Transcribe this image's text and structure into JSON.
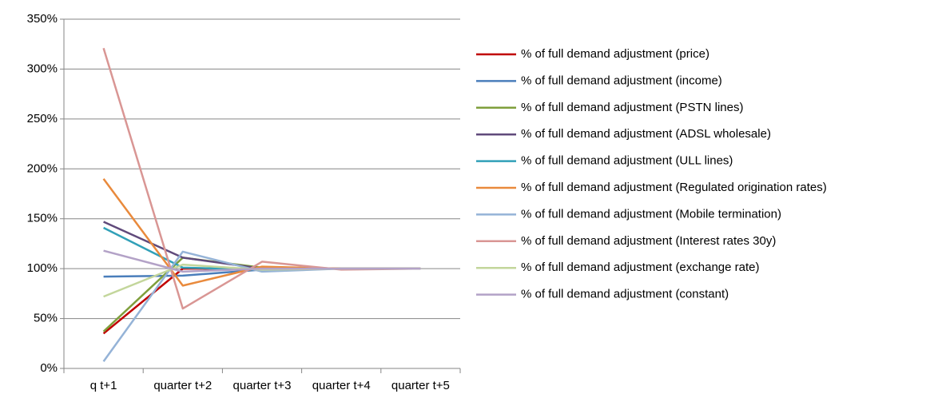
{
  "chart_data": {
    "type": "line",
    "categories": [
      "q t+1",
      "quarter t+2",
      "quarter t+3",
      "quarter t+4",
      "quarter t+5"
    ],
    "series": [
      {
        "name": "% of full demand adjustment (price)",
        "color": "#c00000",
        "values": [
          35,
          100,
          100,
          100,
          100
        ]
      },
      {
        "name": "% of full demand adjustment (income)",
        "color": "#4a7ebb",
        "values": [
          92,
          93,
          99,
          100,
          100
        ]
      },
      {
        "name": "% of full demand adjustment (PSTN lines)",
        "color": "#7f9f3c",
        "values": [
          37,
          111,
          101,
          100,
          100
        ]
      },
      {
        "name": "% of full demand adjustment (ADSL wholesale)",
        "color": "#604a7b",
        "values": [
          147,
          111,
          100,
          100,
          100
        ]
      },
      {
        "name": "% of full demand adjustment (ULL lines)",
        "color": "#31a0b8",
        "values": [
          141,
          101,
          99,
          100,
          100
        ]
      },
      {
        "name": "% of full demand adjustment (Regulated origination rates)",
        "color": "#e98a3c",
        "values": [
          190,
          83,
          102,
          100,
          100
        ]
      },
      {
        "name": "% of full demand adjustment (Mobile termination)",
        "color": "#95b3d7",
        "values": [
          7,
          117,
          97,
          100,
          100
        ]
      },
      {
        "name": "% of full demand adjustment (Interest rates 30y)",
        "color": "#d99694",
        "values": [
          321,
          60,
          107,
          99,
          100
        ]
      },
      {
        "name": "% of full demand adjustment (exchange rate)",
        "color": "#c3d69b",
        "values": [
          72,
          104,
          99,
          100,
          100
        ]
      },
      {
        "name": "% of full demand adjustment (constant)",
        "color": "#b3a2c7",
        "values": [
          118,
          97,
          100,
          100,
          100
        ]
      }
    ],
    "ylim": [
      0,
      350
    ],
    "yticks": [
      {
        "value": 0,
        "label": "0%"
      },
      {
        "value": 50,
        "label": "50%"
      },
      {
        "value": 100,
        "label": "100%"
      },
      {
        "value": 150,
        "label": "150%"
      },
      {
        "value": 200,
        "label": "200%"
      },
      {
        "value": 250,
        "label": "250%"
      },
      {
        "value": 300,
        "label": "300%"
      },
      {
        "value": 350,
        "label": "350%"
      }
    ],
    "grid": true,
    "legend": "right"
  }
}
